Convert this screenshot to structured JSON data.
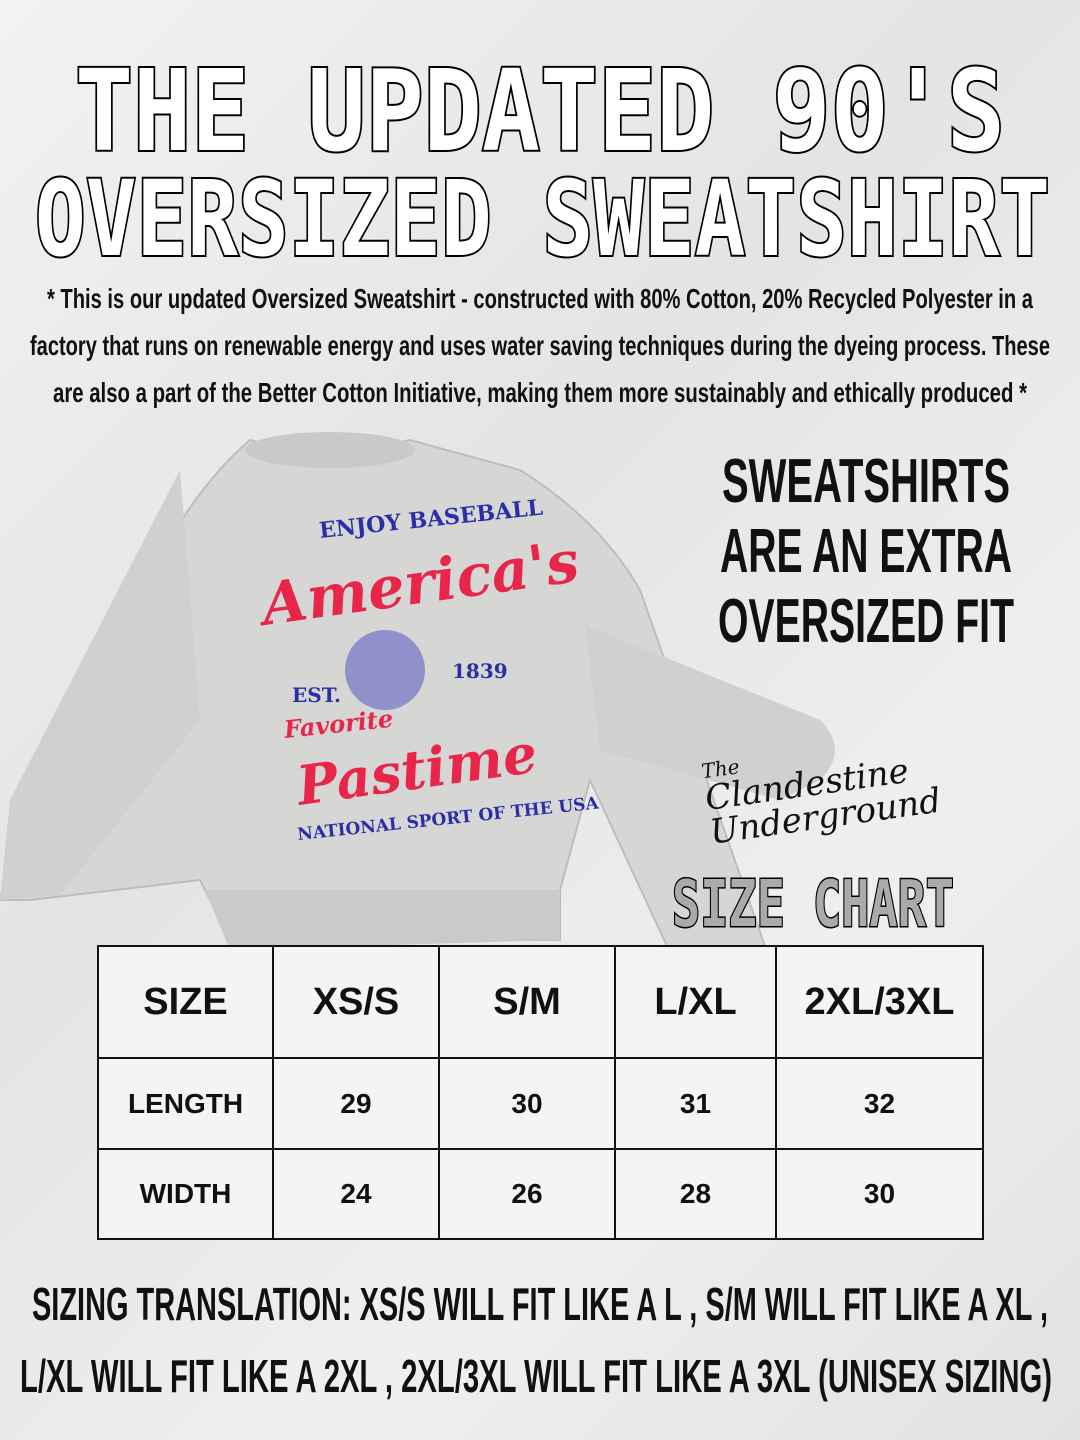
{
  "title": {
    "line1": "THE UPDATED 90'S",
    "line2": "OVERSIZED SWEATSHIRT"
  },
  "description": [
    "* This is our updated Oversized Sweatshirt - constructed with 80% Cotton, 20% Recycled Polyester in a",
    "factory that runs on renewable energy and uses water saving techniques during the dyeing process. These",
    "are also a part of the Better Cotton Initiative, making them more sustainably and ethically produced *"
  ],
  "fit_note": [
    "SWEATSHIRTS",
    "ARE AN EXTRA",
    "OVERSIZED FIT"
  ],
  "shirt_print": {
    "top": "ENJOY BASEBALL",
    "main": "America's",
    "est": "EST.",
    "year": "1839",
    "favorite": "Favorite",
    "pastime": "Pastime",
    "bottom": "NATIONAL SPORT OF THE USA",
    "colors": {
      "red": "#e8264a",
      "blue": "#2a2fa8",
      "shirt": "#d6d6d4"
    }
  },
  "brand": {
    "the": "The",
    "name1": "Clandestine",
    "name2": "Underground"
  },
  "size_chart_title": "SIZE CHART",
  "table": {
    "headers": [
      "SIZE",
      "XS/S",
      "S/M",
      "L/XL",
      "2XL/3XL"
    ],
    "rows": [
      {
        "label": "LENGTH",
        "values": [
          "29",
          "30",
          "31",
          "32"
        ]
      },
      {
        "label": "WIDTH",
        "values": [
          "24",
          "26",
          "28",
          "30"
        ]
      }
    ]
  },
  "translation": [
    "SIZING TRANSLATION: XS/S  WILL FIT LIKE A L , S/M  WILL FIT LIKE A XL ,",
    "L/XL WILL FIT LIKE A  2XL , 2XL/3XL WILL FIT LIKE A 3XL (UNISEX SIZING)"
  ]
}
